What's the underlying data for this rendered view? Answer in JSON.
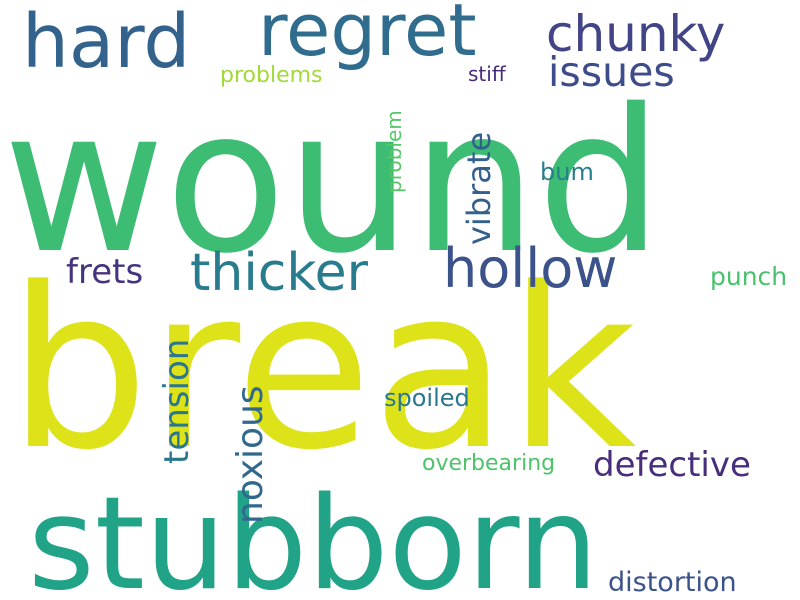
{
  "words": [
    {
      "text": "wound",
      "color": "#3dbc74"
    },
    {
      "text": "break",
      "color": "#dde318"
    },
    {
      "text": "stubborn",
      "color": "#20a386"
    },
    {
      "text": "regret",
      "color": "#2f6c8e"
    },
    {
      "text": "hard",
      "color": "#33638d"
    },
    {
      "text": "chunky",
      "color": "#414487"
    },
    {
      "text": "issues",
      "color": "#3e4c8a"
    },
    {
      "text": "thicker",
      "color": "#287c8e"
    },
    {
      "text": "hollow",
      "color": "#3b528b"
    },
    {
      "text": "frets",
      "color": "#46337e"
    },
    {
      "text": "vibrate",
      "color": "#34608d"
    },
    {
      "text": "problems",
      "color": "#a2da37"
    },
    {
      "text": "stiff",
      "color": "#472c7a"
    },
    {
      "text": "problem",
      "color": "#56c667"
    },
    {
      "text": "bum",
      "color": "#277f8e"
    },
    {
      "text": "punch",
      "color": "#4ac16d"
    },
    {
      "text": "tension",
      "color": "#2a768e"
    },
    {
      "text": "noxious",
      "color": "#31688e"
    },
    {
      "text": "spoiled",
      "color": "#2a788e"
    },
    {
      "text": "defective",
      "color": "#472d7b"
    },
    {
      "text": "overbearing",
      "color": "#4ec36b"
    },
    {
      "text": "distortion",
      "color": "#3b528b"
    }
  ]
}
